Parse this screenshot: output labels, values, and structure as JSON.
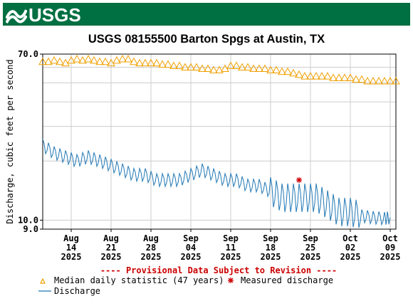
{
  "header": {
    "logo_text": "USGS",
    "brand_color": "#006f41"
  },
  "chart_data": {
    "type": "line",
    "title": "USGS 08155500 Barton Spgs at Austin, TX",
    "ylabel": "Discharge, cubic feet per second",
    "xlabel": "",
    "y_scale": "log",
    "ylim": [
      9.0,
      70.0
    ],
    "y_ticks": [
      "70.0",
      "10.0",
      "9.0"
    ],
    "x_ticks": [
      {
        "date": "2025-08-14",
        "label": "Aug\n14\n2025"
      },
      {
        "date": "2025-08-21",
        "label": "Aug\n21\n2025"
      },
      {
        "date": "2025-08-28",
        "label": "Aug\n28\n2025"
      },
      {
        "date": "2025-09-04",
        "label": "Sep\n04\n2025"
      },
      {
        "date": "2025-09-11",
        "label": "Sep\n11\n2025"
      },
      {
        "date": "2025-09-18",
        "label": "Sep\n18\n2025"
      },
      {
        "date": "2025-09-25",
        "label": "Sep\n25\n2025"
      },
      {
        "date": "2025-10-02",
        "label": "Oct\n02\n2025"
      },
      {
        "date": "2025-10-09",
        "label": "Oct\n09\n2025"
      }
    ],
    "xlim": [
      "2025-08-09",
      "2025-10-10"
    ],
    "grid": true,
    "provisional_note": "---- Provisional Data Subject to Revision ----",
    "colors": {
      "median": "#f0a000",
      "discharge": "#1f77b4",
      "measured": "#cc0000",
      "note": "#cc0000"
    },
    "series": [
      {
        "name": "Median daily statistic (47 years)",
        "marker": "triangle",
        "x": [
          "2025-08-09",
          "2025-08-10",
          "2025-08-11",
          "2025-08-12",
          "2025-08-13",
          "2025-08-14",
          "2025-08-15",
          "2025-08-16",
          "2025-08-17",
          "2025-08-18",
          "2025-08-19",
          "2025-08-20",
          "2025-08-21",
          "2025-08-22",
          "2025-08-23",
          "2025-08-24",
          "2025-08-25",
          "2025-08-26",
          "2025-08-27",
          "2025-08-28",
          "2025-08-29",
          "2025-08-30",
          "2025-08-31",
          "2025-09-01",
          "2025-09-02",
          "2025-09-03",
          "2025-09-04",
          "2025-09-05",
          "2025-09-06",
          "2025-09-07",
          "2025-09-08",
          "2025-09-09",
          "2025-09-10",
          "2025-09-11",
          "2025-09-12",
          "2025-09-13",
          "2025-09-14",
          "2025-09-15",
          "2025-09-16",
          "2025-09-17",
          "2025-09-18",
          "2025-09-19",
          "2025-09-20",
          "2025-09-21",
          "2025-09-22",
          "2025-09-23",
          "2025-09-24",
          "2025-09-25",
          "2025-09-26",
          "2025-09-27",
          "2025-09-28",
          "2025-09-29",
          "2025-09-30",
          "2025-10-01",
          "2025-10-02",
          "2025-10-03",
          "2025-10-04",
          "2025-10-05",
          "2025-10-06",
          "2025-10-07",
          "2025-10-08",
          "2025-10-09",
          "2025-10-10"
        ],
        "values": [
          64,
          64,
          65,
          64,
          63,
          65,
          66,
          65,
          66,
          65,
          64,
          64,
          63,
          65,
          66,
          66,
          64,
          63,
          63,
          63,
          63,
          62,
          62,
          61,
          61,
          60,
          60,
          60,
          59,
          59,
          58,
          58,
          59,
          61,
          61,
          60,
          60,
          59,
          59,
          59,
          58,
          58,
          57,
          57,
          56,
          55,
          54,
          54,
          54,
          54,
          54,
          53,
          53,
          53,
          53,
          52,
          52,
          51,
          51,
          51,
          51,
          51,
          51
        ]
      },
      {
        "name": "Discharge",
        "marker": "line",
        "x": [
          "2025-08-09",
          "2025-08-11",
          "2025-08-13",
          "2025-08-15",
          "2025-08-17",
          "2025-08-19",
          "2025-08-21",
          "2025-08-23",
          "2025-08-25",
          "2025-08-27",
          "2025-08-29",
          "2025-08-31",
          "2025-09-02",
          "2025-09-04",
          "2025-09-06",
          "2025-09-08",
          "2025-09-10",
          "2025-09-12",
          "2025-09-14",
          "2025-09-16",
          "2025-09-18",
          "2025-09-20",
          "2025-09-22",
          "2025-09-24",
          "2025-09-26",
          "2025-09-28",
          "2025-09-30",
          "2025-10-02",
          "2025-10-04",
          "2025-10-06",
          "2025-10-08",
          "2025-10-09"
        ],
        "values": [
          24,
          22,
          21,
          20,
          21,
          20,
          19,
          18,
          17,
          17,
          16,
          16,
          16,
          17,
          18,
          17,
          16,
          16,
          15,
          15,
          14,
          13,
          13,
          13,
          13,
          12,
          11,
          11,
          10.5,
          10.3,
          10.2,
          10.3
        ]
      },
      {
        "name": "Measured discharge",
        "marker": "asterisk",
        "x": [
          "2025-09-23"
        ],
        "values": [
          16
        ]
      }
    ]
  }
}
